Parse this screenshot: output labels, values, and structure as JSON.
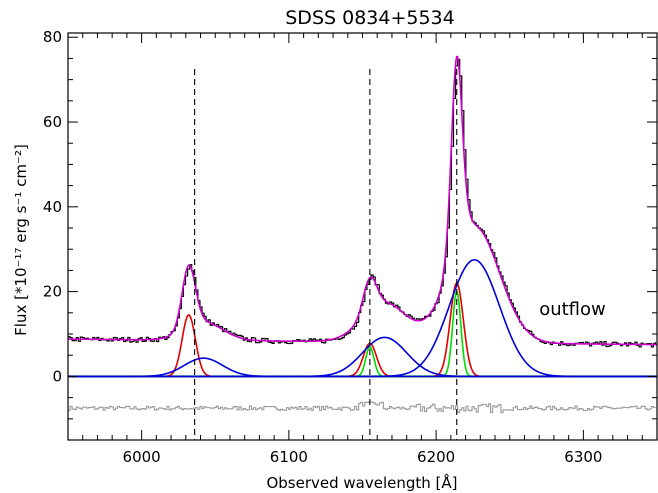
{
  "chart_data": {
    "type": "line",
    "title": "SDSS 0834+5534",
    "xlabel": "Observed wavelength [Å]",
    "ylabel": "Flux [*10⁻¹⁷ erg s⁻¹ cm⁻²]",
    "xlim": [
      5950,
      6350
    ],
    "ylim": [
      -15,
      81
    ],
    "x_ticks": [
      6000,
      6100,
      6200,
      6300
    ],
    "y_ticks": [
      0,
      20,
      40,
      60,
      80
    ],
    "grid": false,
    "annotations": [
      {
        "text": "outflow",
        "x": 6270,
        "y": 14.5,
        "color": "#0000cc"
      }
    ],
    "vertical_lines": [
      6036,
      6155,
      6214
    ],
    "baseline_y": 0,
    "continuum": {
      "x0": 5950,
      "y0": 8.8,
      "x1": 6350,
      "y1": 7.5
    },
    "components": [
      {
        "color": "#e00000",
        "kind": "narrow",
        "lines": [
          {
            "center": 6032,
            "amp": 14.5,
            "sigma": 4.5
          },
          {
            "center": 6155,
            "amp": 7.8,
            "sigma": 4.5
          },
          {
            "center": 6214,
            "amp": 22.0,
            "sigma": 4.5
          }
        ]
      },
      {
        "color": "#00dd00",
        "kind": "narrow-core",
        "lines": [
          {
            "center": 6155,
            "amp": 7.0,
            "sigma": 2.8
          },
          {
            "center": 6214,
            "amp": 20.0,
            "sigma": 2.8
          }
        ]
      },
      {
        "color": "#0000dd",
        "kind": "broad",
        "lines": [
          {
            "center": 6042,
            "amp": 4.3,
            "sigma": 13
          },
          {
            "center": 6165,
            "amp": 9.2,
            "sigma": 15
          },
          {
            "center": 6226,
            "amp": 27.5,
            "sigma": 17
          }
        ]
      }
    ],
    "model": {
      "color": "#cc00cc",
      "extra_narrow_peak": {
        "center": 6214,
        "amp": 24.0,
        "sigma": 3.2
      }
    },
    "residual": {
      "color": "#999999",
      "offset": -7.5,
      "noise": 1.0
    }
  }
}
